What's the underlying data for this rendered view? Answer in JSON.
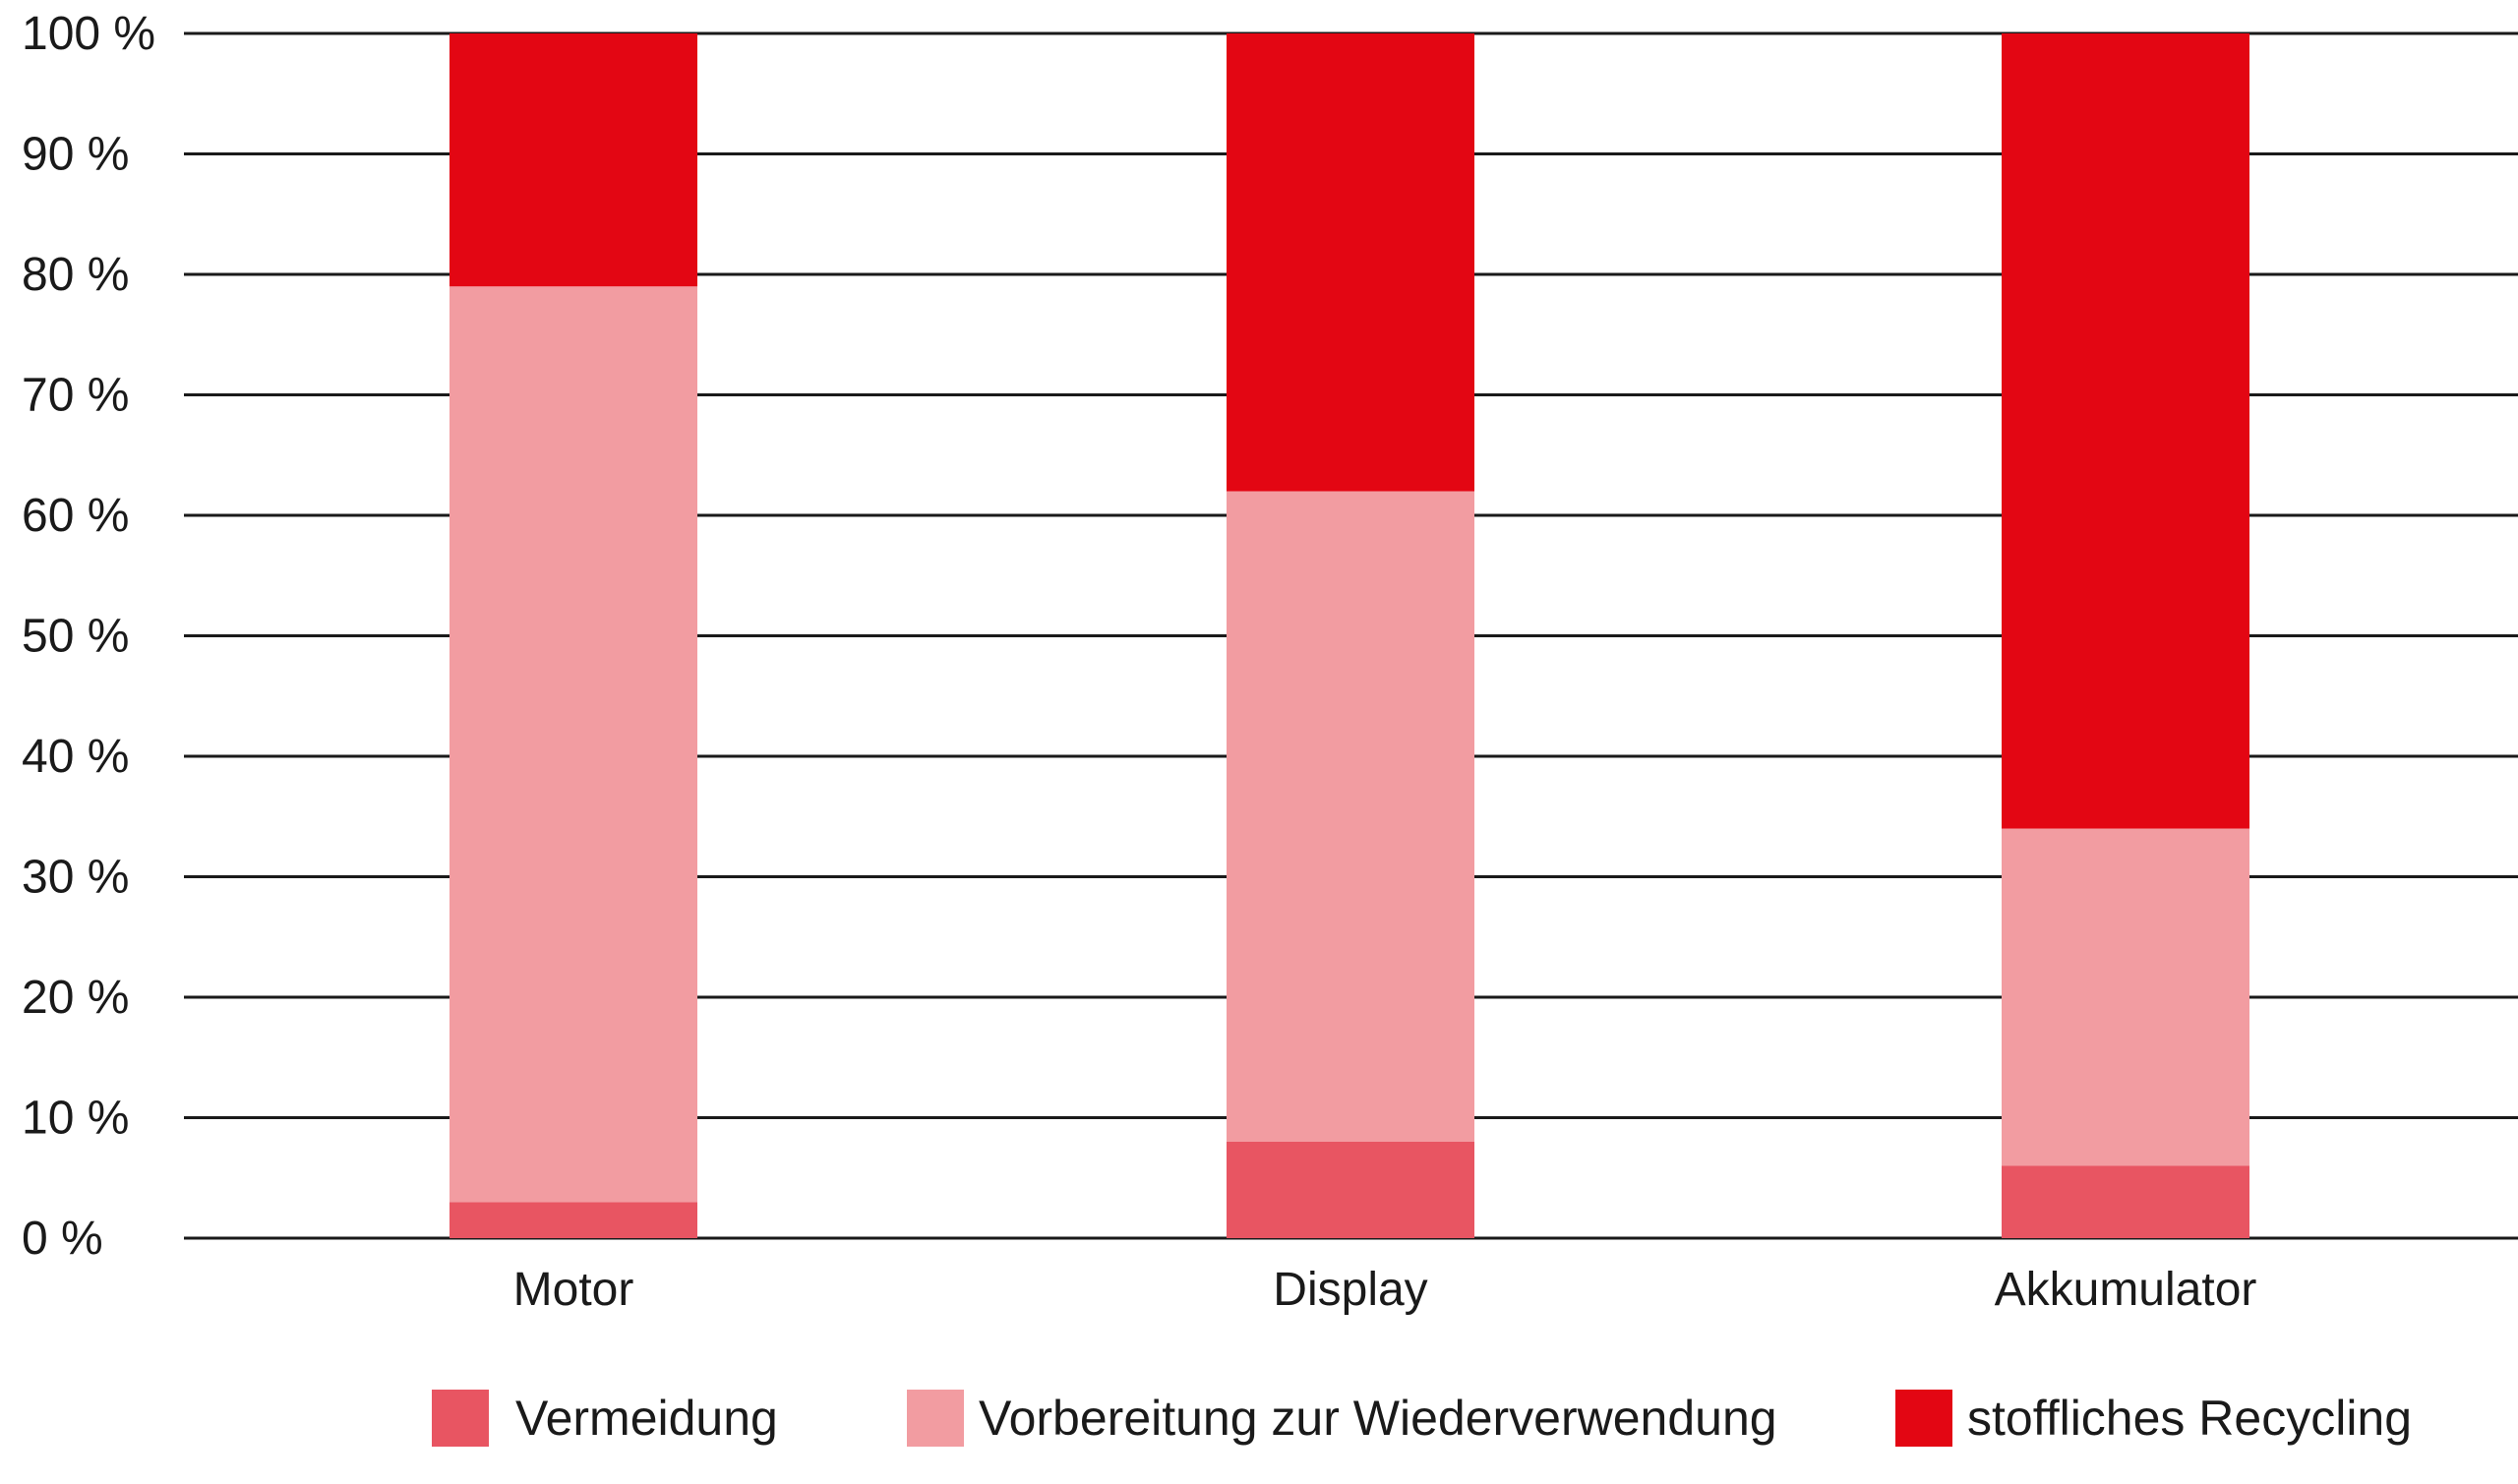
{
  "chart_data": {
    "type": "bar",
    "stacked": true,
    "title": "",
    "xlabel": "",
    "ylabel": "",
    "categories": [
      "Motor",
      "Display",
      "Akkumulator"
    ],
    "series": [
      {
        "name": "Vermeidung",
        "color": "#e85562",
        "values": [
          3,
          8,
          6
        ]
      },
      {
        "name": "Vorbereitung zur Wiederverwendung",
        "color": "#f29ca1",
        "values": [
          76,
          54,
          28
        ]
      },
      {
        "name": "stoffliches Recycling",
        "color": "#e30613",
        "values": [
          21,
          38,
          66
        ]
      }
    ],
    "ylim": [
      0,
      100
    ],
    "yticks": [
      0,
      10,
      20,
      30,
      40,
      50,
      60,
      70,
      80,
      90,
      100
    ],
    "ytick_labels": [
      "0 %",
      "10 %",
      "20 %",
      "30 %",
      "40 %",
      "50 %",
      "60 %",
      "70 %",
      "80 %",
      "90 %",
      "100 %"
    ],
    "grid": true,
    "legend_position": "bottom"
  }
}
